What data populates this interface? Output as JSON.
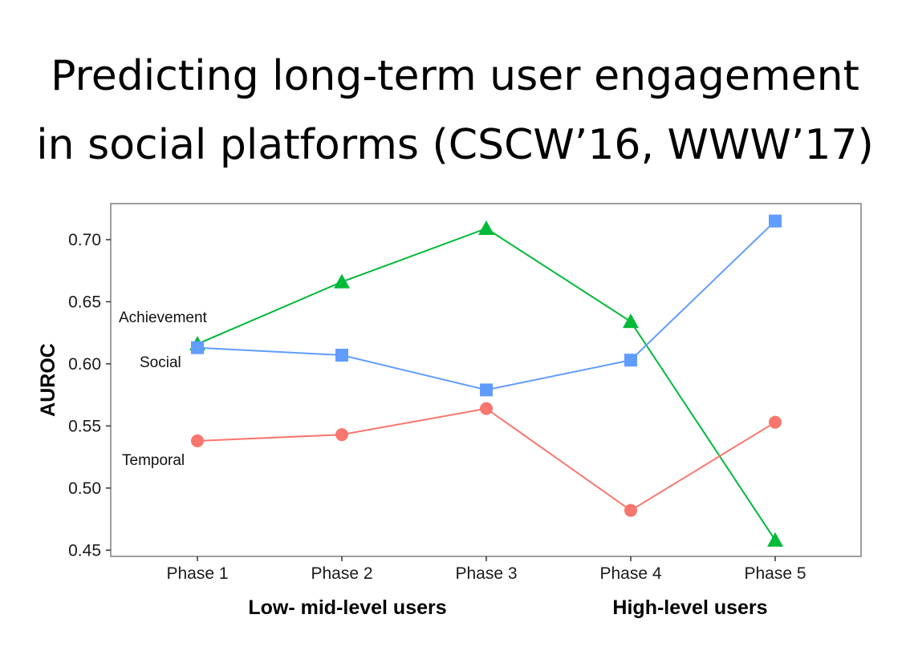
{
  "title_lines": [
    "Predicting long-term user engagement",
    "in social platforms (CSCW’16, WWW’17)"
  ],
  "chart_data": {
    "type": "line",
    "categories": [
      "Phase 1",
      "Phase 2",
      "Phase 3",
      "Phase 4",
      "Phase 5"
    ],
    "ylabel": "AUROC",
    "xlabel": "",
    "ylim": [
      0.445,
      0.729
    ],
    "yticks": [
      "0.45",
      "0.50",
      "0.55",
      "0.60",
      "0.65",
      "0.70"
    ],
    "grid": false,
    "category_groups": [
      "Low- mid-level users",
      "High-level users"
    ],
    "series": [
      {
        "name": "Achievement",
        "color": "#00ba38",
        "marker": "triangle",
        "values": [
          0.616,
          0.666,
          0.709,
          0.634,
          0.458
        ]
      },
      {
        "name": "Social",
        "color": "#619cff",
        "marker": "square",
        "values": [
          0.613,
          0.607,
          0.579,
          0.603,
          0.715
        ]
      },
      {
        "name": "Temporal",
        "color": "#f8766d",
        "marker": "circle",
        "values": [
          0.538,
          0.543,
          0.564,
          0.482,
          0.553
        ]
      }
    ]
  }
}
